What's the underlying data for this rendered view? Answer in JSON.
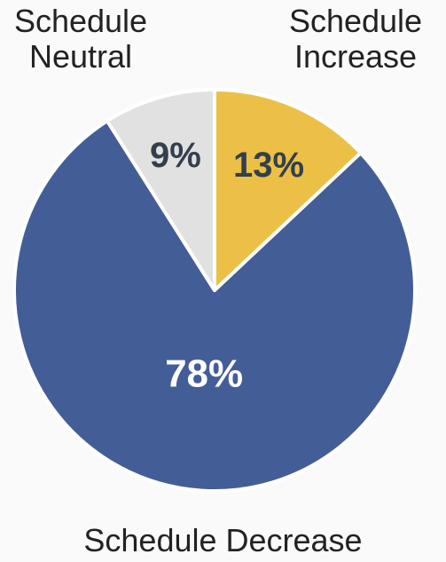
{
  "chart_data": {
    "type": "pie",
    "slices": [
      {
        "label": "Schedule Increase",
        "display_label": "Schedule\nIncrease",
        "value": 13,
        "value_label": "13%",
        "color": "#ecc046",
        "text_color": "#333f4c"
      },
      {
        "label": "Schedule Decrease",
        "display_label": "Schedule Decrease",
        "value": 78,
        "value_label": "78%",
        "color": "#435d97",
        "text_color": "#ffffff"
      },
      {
        "label": "Schedule Neutral",
        "display_label": "Schedule\nNeutral",
        "value": 9,
        "value_label": "9%",
        "color": "#e1e1e1",
        "text_color": "#333f4c"
      }
    ],
    "start_angle_deg": 0,
    "direction": "clockwise"
  }
}
